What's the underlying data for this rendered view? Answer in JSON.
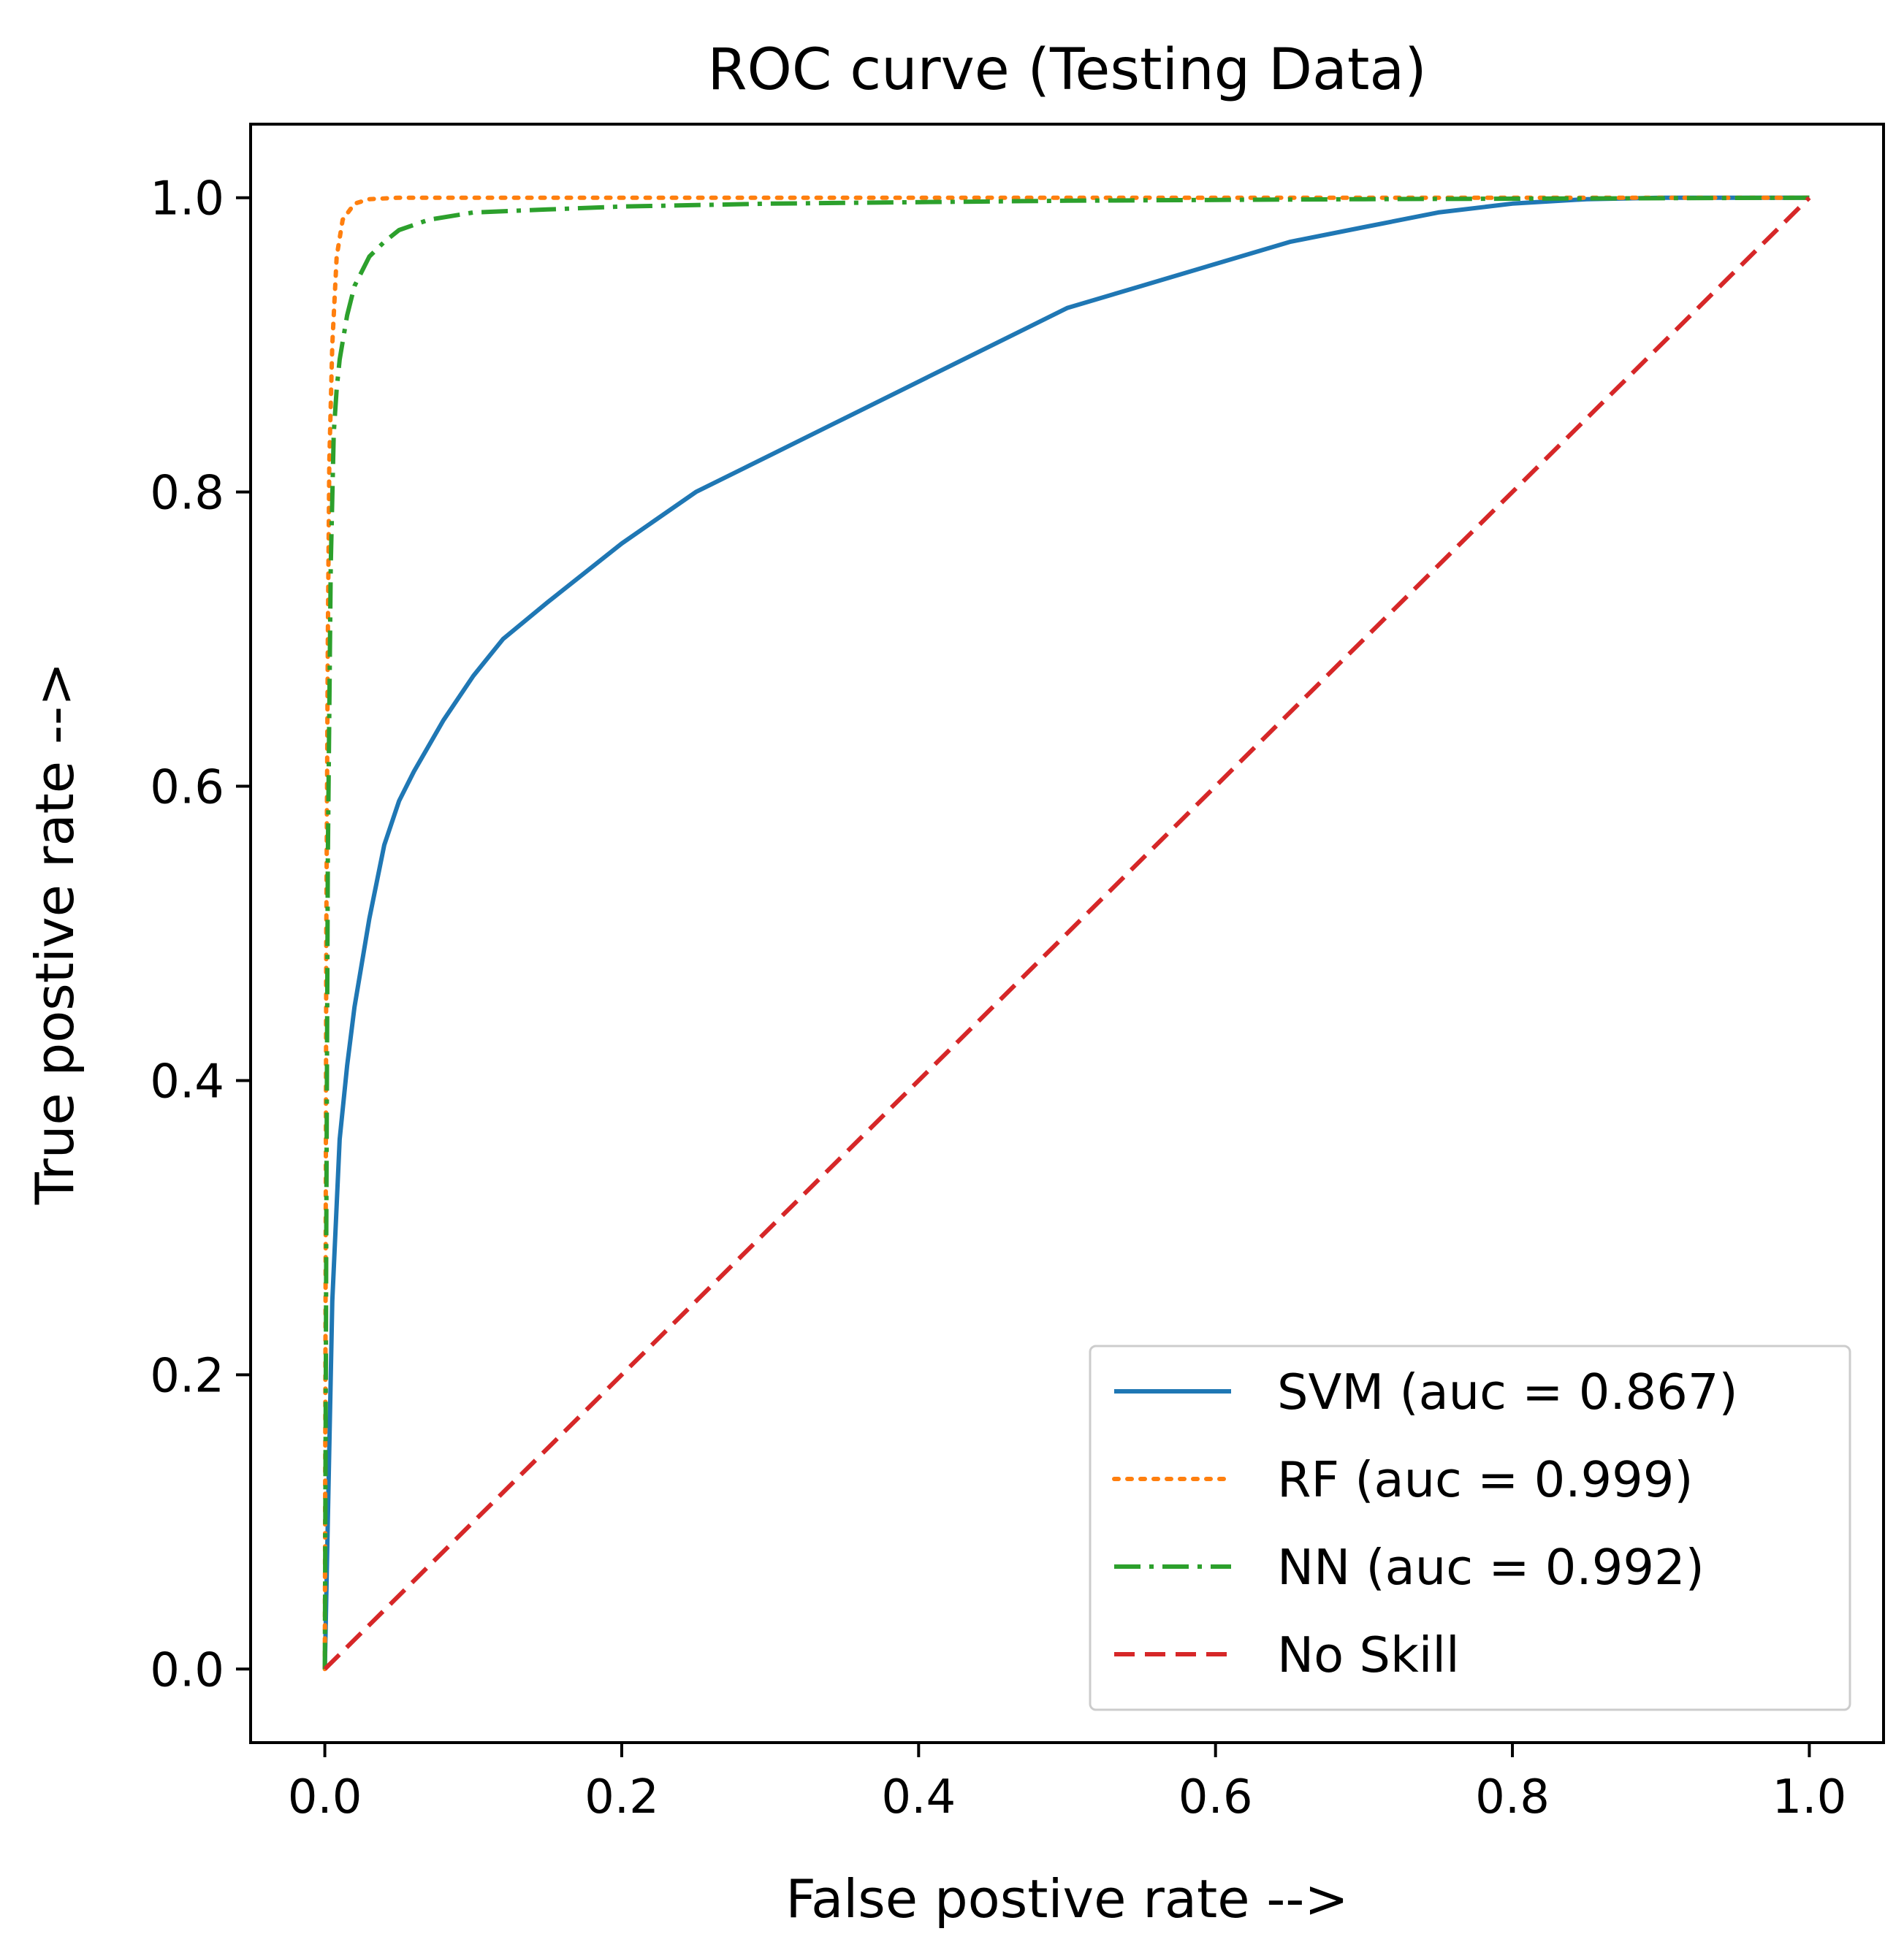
{
  "chart_data": {
    "type": "line",
    "title": "ROC curve (Testing Data)",
    "xlabel": "False postive rate -->",
    "ylabel": "True postive rate -->",
    "xlim": [
      -0.05,
      1.05
    ],
    "ylim": [
      -0.05,
      1.05
    ],
    "xticks": [
      0.0,
      0.2,
      0.4,
      0.6,
      0.8,
      1.0
    ],
    "yticks": [
      0.0,
      0.2,
      0.4,
      0.6,
      0.8,
      1.0
    ],
    "xtick_labels": [
      "0.0",
      "0.2",
      "0.4",
      "0.6",
      "0.8",
      "1.0"
    ],
    "ytick_labels": [
      "0.0",
      "0.2",
      "0.4",
      "0.6",
      "0.8",
      "1.0"
    ],
    "grid": false,
    "legend_position": "lower-right",
    "series": [
      {
        "name": "SVM (auc = 0.867)",
        "color": "#1f77b4",
        "style": "solid",
        "x": [
          0.0,
          0.003,
          0.005,
          0.01,
          0.015,
          0.02,
          0.03,
          0.04,
          0.05,
          0.06,
          0.08,
          0.1,
          0.12,
          0.15,
          0.2,
          0.25,
          0.3,
          0.35,
          0.4,
          0.45,
          0.5,
          0.55,
          0.6,
          0.65,
          0.7,
          0.75,
          0.8,
          0.85,
          0.9,
          0.95,
          1.0
        ],
        "y": [
          0.0,
          0.15,
          0.25,
          0.36,
          0.41,
          0.45,
          0.51,
          0.56,
          0.59,
          0.61,
          0.645,
          0.675,
          0.7,
          0.725,
          0.765,
          0.8,
          0.825,
          0.85,
          0.875,
          0.9,
          0.925,
          0.94,
          0.955,
          0.97,
          0.98,
          0.99,
          0.996,
          0.999,
          1.0,
          1.0,
          1.0
        ]
      },
      {
        "name": "RF (auc = 0.999)",
        "color": "#ff7f0e",
        "style": "dotted",
        "x": [
          0.0,
          0.001,
          0.002,
          0.003,
          0.005,
          0.008,
          0.012,
          0.02,
          0.03,
          0.05,
          0.1,
          0.5,
          1.0
        ],
        "y": [
          0.0,
          0.5,
          0.7,
          0.82,
          0.9,
          0.96,
          0.985,
          0.996,
          0.999,
          1.0,
          1.0,
          1.0,
          1.0
        ]
      },
      {
        "name": "NN (auc = 0.992)",
        "color": "#2ca02c",
        "style": "dashdot",
        "x": [
          0.0,
          0.001,
          0.002,
          0.004,
          0.006,
          0.008,
          0.01,
          0.015,
          0.02,
          0.03,
          0.04,
          0.05,
          0.07,
          0.1,
          0.15,
          0.2,
          0.3,
          0.5,
          0.7,
          1.0
        ],
        "y": [
          0.0,
          0.3,
          0.55,
          0.75,
          0.84,
          0.87,
          0.89,
          0.92,
          0.94,
          0.96,
          0.97,
          0.978,
          0.985,
          0.99,
          0.992,
          0.994,
          0.996,
          0.998,
          0.999,
          1.0
        ]
      },
      {
        "name": "No Skill",
        "color": "#d62728",
        "style": "dashed",
        "x": [
          0.0,
          1.0
        ],
        "y": [
          0.0,
          1.0
        ]
      }
    ]
  }
}
